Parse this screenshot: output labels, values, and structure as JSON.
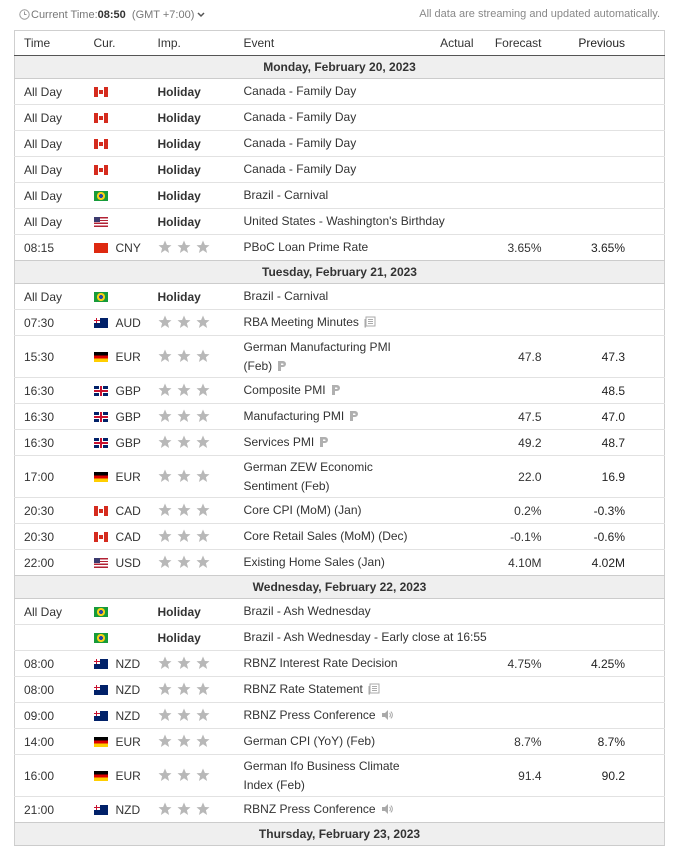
{
  "header": {
    "time_label": "Current Time:",
    "time": "08:50",
    "timezone": "(GMT +7:00)",
    "notice": "All data are streaming and updated automatically."
  },
  "table": {
    "columns": [
      "Time",
      "Cur.",
      "Imp.",
      "Event",
      "Actual",
      "Forecast",
      "Previous"
    ],
    "rows": [
      {
        "date": "Monday, February 20, 2023"
      },
      {
        "time": "All Day",
        "importance": "Holiday",
        "event": "Canada - Family Day"
      },
      {
        "time": "All Day",
        "importance": "Holiday",
        "event": "Canada - Family Day"
      },
      {
        "time": "All Day",
        "importance": "Holiday",
        "event": "Canada - Family Day"
      },
      {
        "time": "All Day",
        "importance": "Holiday",
        "event": "Canada - Family Day"
      },
      {
        "time": "All Day",
        "importance": "Holiday",
        "event": "Brazil - Carnival"
      },
      {
        "time": "All Day",
        "importance": "Holiday",
        "event": "United States - Washington's Birthday"
      },
      {
        "time": "08:15",
        "currency": "CNY",
        "event": "PBoC Loan Prime Rate",
        "forecast": "3.65%",
        "previous": "3.65%"
      },
      {
        "date": "Tuesday, February 21, 2023"
      },
      {
        "time": "All Day",
        "importance": "Holiday",
        "event": "Brazil - Carnival"
      },
      {
        "time": "07:30",
        "currency": "AUD",
        "event": "RBA Meeting Minutes"
      },
      {
        "time": "15:30",
        "currency": "EUR",
        "event": "German Manufacturing PMI (Feb)",
        "forecast": "47.8",
        "previous": "47.3"
      },
      {
        "time": "16:30",
        "currency": "GBP",
        "event": "Composite PMI",
        "previous": "48.5"
      },
      {
        "time": "16:30",
        "currency": "GBP",
        "event": "Manufacturing PMI",
        "forecast": "47.5",
        "previous": "47.0"
      },
      {
        "time": "16:30",
        "currency": "GBP",
        "event": "Services PMI",
        "forecast": "49.2",
        "previous": "48.7"
      },
      {
        "time": "17:00",
        "currency": "EUR",
        "event": "German ZEW Economic Sentiment (Feb)",
        "forecast": "22.0",
        "previous": "16.9"
      },
      {
        "time": "20:30",
        "currency": "CAD",
        "event": "Core CPI (MoM) (Jan)",
        "forecast": "0.2%",
        "previous": "-0.3%"
      },
      {
        "time": "20:30",
        "currency": "CAD",
        "event": "Core Retail Sales (MoM) (Dec)",
        "forecast": "-0.1%",
        "previous": "-0.6%"
      },
      {
        "time": "22:00",
        "currency": "USD",
        "event": "Existing Home Sales (Jan)",
        "forecast": "4.10M",
        "previous": "4.02M"
      },
      {
        "date": "Wednesday, February 22, 2023"
      },
      {
        "time": "All Day",
        "importance": "Holiday",
        "event": "Brazil - Ash Wednesday"
      },
      {
        "importance": "Holiday",
        "event": "Brazil - Ash Wednesday - Early close at 16:55"
      },
      {
        "time": "08:00",
        "currency": "NZD",
        "event": "RBNZ Interest Rate Decision",
        "forecast": "4.75%",
        "previous": "4.25%"
      },
      {
        "time": "08:00",
        "currency": "NZD",
        "event": "RBNZ Rate Statement"
      },
      {
        "time": "09:00",
        "currency": "NZD",
        "event": "RBNZ Press Conference"
      },
      {
        "time": "14:00",
        "currency": "EUR",
        "event": "German CPI (YoY) (Feb)",
        "forecast": "8.7%",
        "previous": "8.7%"
      },
      {
        "time": "16:00",
        "currency": "EUR",
        "event": "German Ifo Business Climate Index (Feb)",
        "forecast": "91.4",
        "previous": "90.2"
      },
      {
        "time": "21:00",
        "currency": "NZD",
        "event": "RBNZ Press Conference"
      },
      {
        "date": "Thursday, February 23, 2023"
      }
    ]
  }
}
